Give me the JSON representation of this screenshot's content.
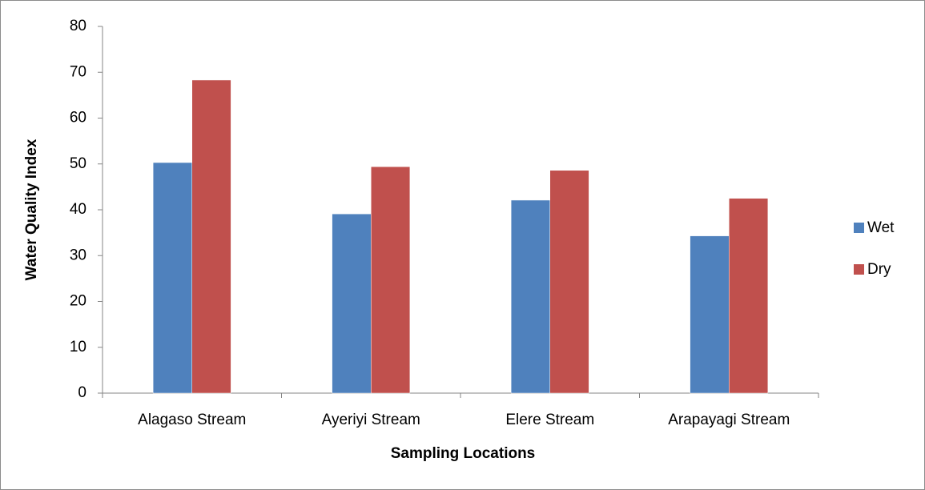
{
  "chart_data": {
    "type": "bar",
    "title": "",
    "xlabel": "Sampling Locations",
    "ylabel": "Water Quality Index",
    "categories": [
      "Alagaso Stream",
      "Ayeriyi Stream",
      "Elere Stream",
      "Arapayagi Stream"
    ],
    "series": [
      {
        "name": "Wet",
        "color": "#4F81BD",
        "values": [
          50.3,
          39.1,
          42.1,
          34.3
        ]
      },
      {
        "name": "Dry",
        "color": "#C0504D",
        "values": [
          68.3,
          49.4,
          48.6,
          42.5
        ]
      }
    ],
    "ylim": [
      0,
      80
    ],
    "yticks": [
      0,
      10,
      20,
      30,
      40,
      50,
      60,
      70,
      80
    ],
    "grid": false,
    "legend_position": "right"
  }
}
